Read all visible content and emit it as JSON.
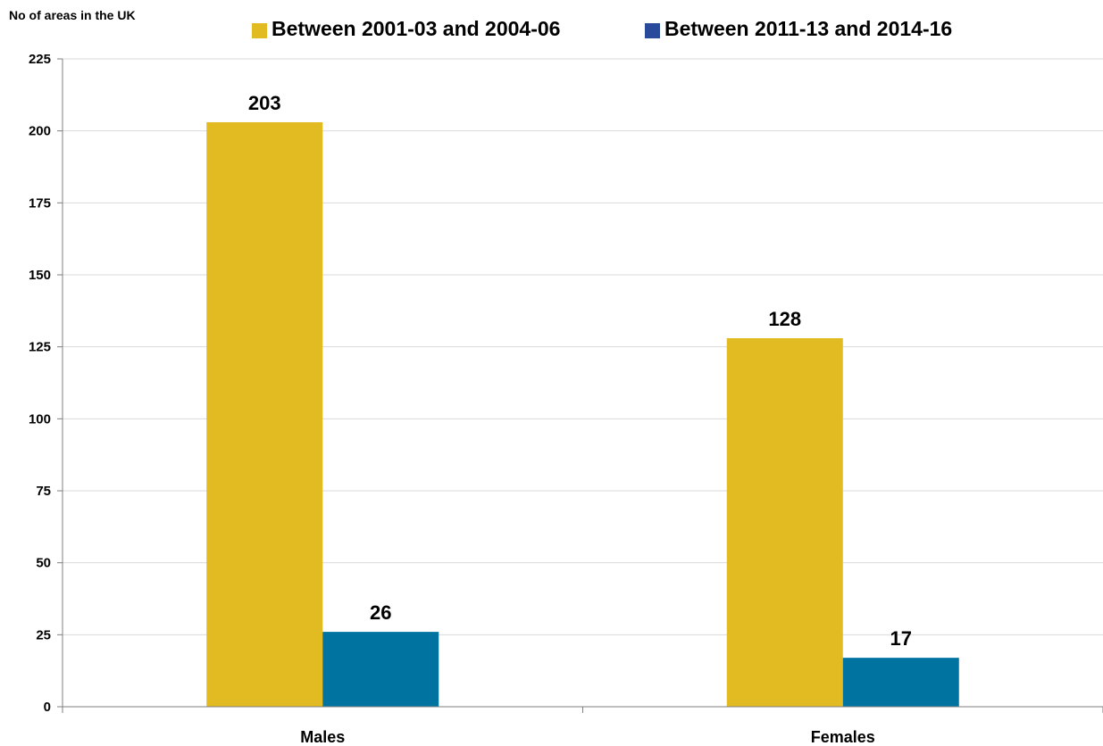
{
  "chart_data": {
    "type": "bar",
    "title": "",
    "ylabel": "No of areas in the UK",
    "xlabel": "",
    "categories": [
      "Males",
      "Females"
    ],
    "series": [
      {
        "name": "Between 2001-03 and 2004-06",
        "values": [
          203,
          128
        ],
        "color": "#E2BA22"
      },
      {
        "name": "Between 2011-13 and 2014-16",
        "values": [
          26,
          17
        ],
        "color": "#0073A0",
        "legend_color": "#2A4B9B"
      }
    ],
    "ylim": [
      0,
      225
    ],
    "yticks": [
      0,
      25,
      50,
      75,
      100,
      125,
      150,
      175,
      200,
      225
    ],
    "grid": true,
    "legend_position": "top",
    "data_labels": true
  }
}
